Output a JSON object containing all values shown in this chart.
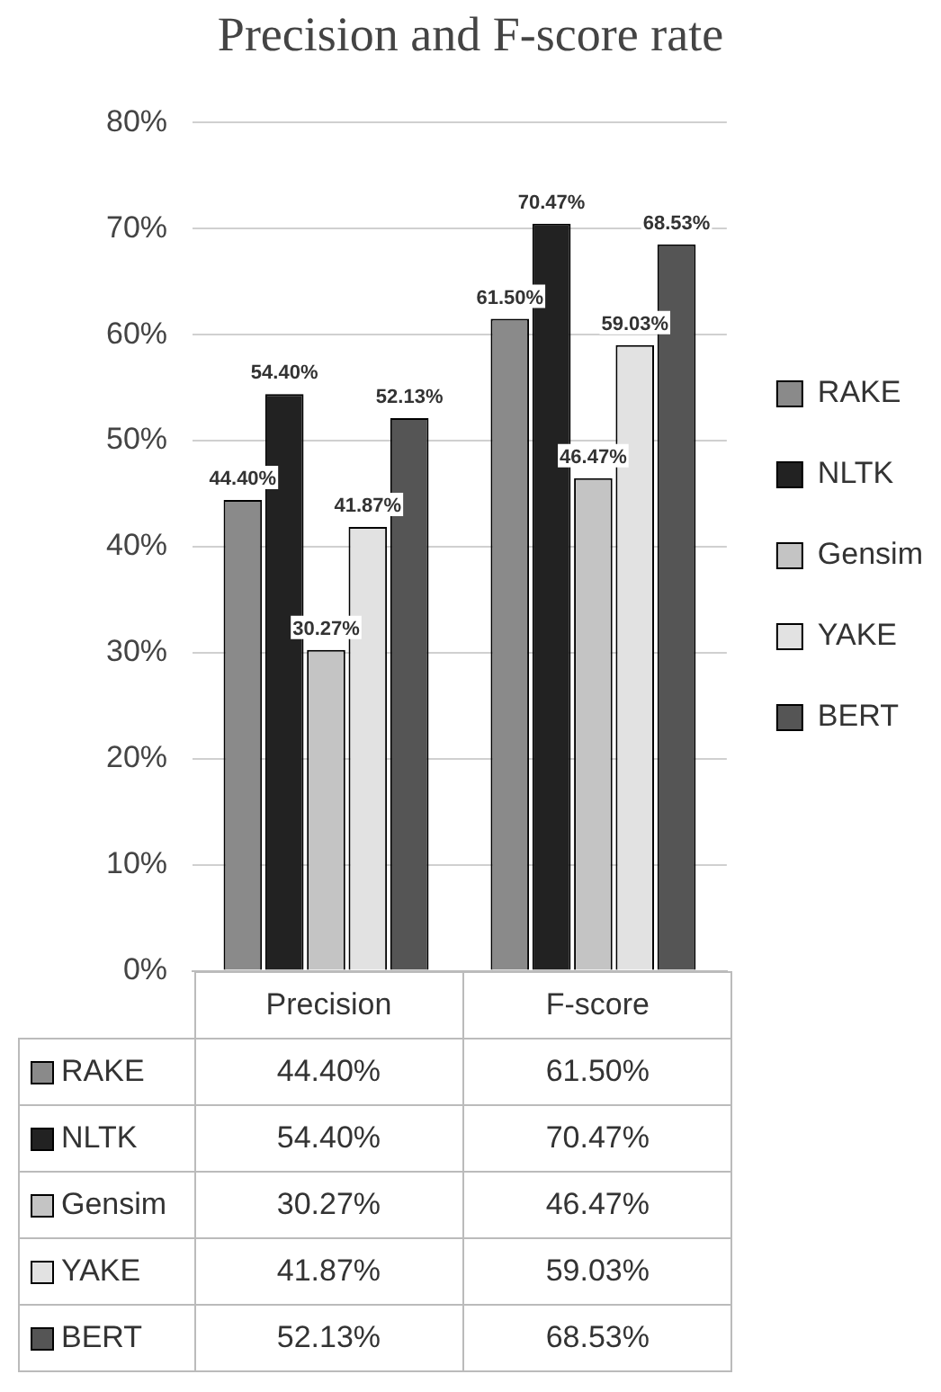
{
  "chart_data": {
    "type": "bar",
    "title": "Precision and F-score rate",
    "categories": [
      "Precision",
      "F-score"
    ],
    "series": [
      {
        "name": "RAKE",
        "color": "#8a8a8a",
        "values": [
          44.4,
          61.5
        ],
        "value_labels": [
          "44.40%",
          "61.50%"
        ]
      },
      {
        "name": "NLTK",
        "color": "#222222",
        "values": [
          54.4,
          70.47
        ],
        "value_labels": [
          "54.40%",
          "70.47%"
        ]
      },
      {
        "name": "Gensim",
        "color": "#c4c4c4",
        "values": [
          30.27,
          46.47
        ],
        "value_labels": [
          "30.27%",
          "46.47%"
        ]
      },
      {
        "name": "YAKE",
        "color": "#e2e2e2",
        "values": [
          41.87,
          59.03
        ],
        "value_labels": [
          "41.87%",
          "59.03%"
        ]
      },
      {
        "name": "BERT",
        "color": "#555555",
        "values": [
          52.13,
          68.53
        ],
        "value_labels": [
          "52.13%",
          "68.53%"
        ]
      }
    ],
    "ylim": [
      0,
      80
    ],
    "yticks": [
      {
        "value": 0,
        "label": "0%"
      },
      {
        "value": 10,
        "label": "10%"
      },
      {
        "value": 20,
        "label": "20%"
      },
      {
        "value": 30,
        "label": "30%"
      },
      {
        "value": 40,
        "label": "40%"
      },
      {
        "value": 50,
        "label": "50%"
      },
      {
        "value": 60,
        "label": "60%"
      },
      {
        "value": 70,
        "label": "70%"
      },
      {
        "value": 80,
        "label": "80%"
      }
    ],
    "grid": "y",
    "legend": "right"
  }
}
